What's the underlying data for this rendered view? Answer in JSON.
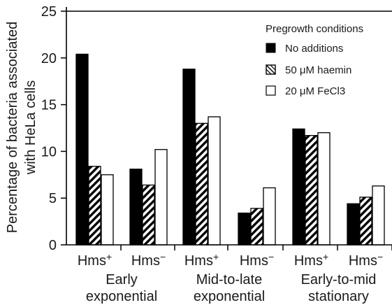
{
  "chart_data": {
    "type": "bar",
    "ylabel_line1": "Percentage of bacteria associated",
    "ylabel_line2": "with HeLa cells",
    "ylim": [
      0,
      25
    ],
    "yticks": [
      "0",
      "5",
      "10",
      "15",
      "20",
      "25"
    ],
    "legend_title": "Pregrowth conditions",
    "legend_position": "top-right",
    "series": [
      {
        "name": "No additions",
        "pattern": "solid"
      },
      {
        "name": "50 μM haemin",
        "pattern": "hatch"
      },
      {
        "name": "20 μM FeCl3",
        "pattern": "open"
      }
    ],
    "strains": [
      "Hms+",
      "Hms−"
    ],
    "phases": [
      {
        "label_line1": "Early",
        "label_line2": "exponential",
        "data": {
          "Hms+": [
            20.4,
            8.4,
            7.5
          ],
          "Hms−": [
            8.1,
            6.4,
            10.2
          ]
        }
      },
      {
        "label_line1": "Mid-to-late",
        "label_line2": "exponential",
        "data": {
          "Hms+": [
            18.8,
            13.0,
            13.7
          ],
          "Hms−": [
            3.4,
            3.9,
            6.1
          ]
        }
      },
      {
        "label_line1": "Early-to-mid",
        "label_line2": "stationary",
        "data": {
          "Hms+": [
            12.4,
            11.7,
            12.0
          ],
          "Hms−": [
            4.4,
            5.1,
            6.3
          ]
        }
      }
    ]
  }
}
